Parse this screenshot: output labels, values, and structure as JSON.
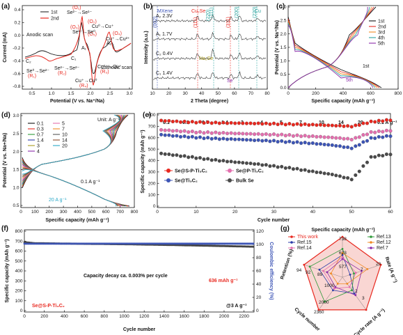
{
  "panels": {
    "a": {
      "label": "(a)",
      "xlabel": "Potential (V vs. Na⁺/Na)",
      "ylabel": "Current (mA)",
      "xticks": [
        "0.5",
        "1.0",
        "1.5",
        "2.0",
        "2.5",
        "3.0"
      ],
      "yticks": [
        "0.4",
        "0.2",
        "0.0",
        "-0.2",
        "-0.4",
        "-0.6",
        "-0.8"
      ],
      "legend": [
        "1st",
        "2nd"
      ],
      "notes": {
        "anodic": "Anodic scan",
        "cathodic": "Cathodic scan",
        "se2_se1": "Se²⁻→Se¹⁻",
        "o1": "(O₁)",
        "o2": "(O₂)",
        "o3": "(O₃)",
        "o4": "(O₄)",
        "o5": "(O₅)",
        "c1": "C₁",
        "c2": "C₂",
        "a1": "A₁",
        "a2": "A₂",
        "se1_se0": "Se¹⁻→Se⁰",
        "cu_cu": "Cu⁰→Cu⁺",
        "cu_cu2": "Cu⁺→Cu²⁺",
        "se0_se2": "Se⁰→Se²⁻",
        "r1": "(R₁)",
        "se2_se2": "Se²⁻→Se²⁻",
        "r2": "(R₂)",
        "cu2_cu": "Cu²⁺→Cu⁺",
        "r3": "(R₃)",
        "cu1_cu0": "Cu⁺→Cu⁰",
        "r4": "(R₄)"
      }
    },
    "b": {
      "label": "(b)",
      "xlabel": "2 Theta (degree)",
      "ylabel": "Intensity (a.u.)",
      "xticks": [
        "10",
        "20",
        "30",
        "40",
        "50",
        "60",
        "70",
        "80"
      ],
      "traces": [
        "A₂ 2.3V",
        "A₁ 1.7V",
        "C₂ 0.4V",
        "C₁ 1.4V"
      ],
      "labels": {
        "mxene": "MXene",
        "cu2se": "Cu₂Se",
        "cu": "Cu",
        "na2se": "Na₂Se",
        "se": "Se",
        "h002": "(002)",
        "h111": "(111)",
        "h220": "(220)",
        "h311": "(311)",
        "h111b": "(111)",
        "h200": "(200)",
        "h220b": "(220)"
      }
    },
    "c": {
      "label": "(c)",
      "xlabel": "Specific capacity (mAh g⁻¹)",
      "ylabel": "Potential (V vs. Na⁺/Na)",
      "xticks": [
        "0",
        "200",
        "400",
        "600",
        "800"
      ],
      "yticks": [
        "0.0",
        "0.5",
        "1.0",
        "1.5",
        "2.0",
        "2.5",
        "3.0"
      ],
      "legend": [
        "1st",
        "2nd",
        "3rd",
        "4th",
        "5th"
      ],
      "notes": {
        "first": "1st",
        "fifth": "5th"
      }
    },
    "d": {
      "label": "(d)",
      "xlabel": "Specific capacity (mAh g⁻¹)",
      "ylabel": "Potential (V vs. Na+/Na)",
      "xticks": [
        "0",
        "100",
        "200",
        "300",
        "400",
        "500",
        "600",
        "700",
        "800"
      ],
      "yticks": [
        "0.5",
        "1.0",
        "1.5",
        "2.0",
        "2.5",
        "3.0"
      ],
      "unit": "Unit: A g⁻¹",
      "legend": [
        "0.1",
        "0.3",
        "0.7",
        "1.4",
        "3",
        "4",
        "5",
        "7",
        "10",
        "14",
        "20"
      ],
      "notes": {
        "low": "0.1 A g⁻¹",
        "high": "20 A g⁻¹"
      }
    },
    "e": {
      "label": "(e)",
      "xlabel": "Cycle number",
      "ylabel": "Specific capacity (mAh g⁻¹)",
      "xticks": [
        "0",
        "10",
        "20",
        "30",
        "40",
        "50",
        "60"
      ],
      "yticks": [
        "0",
        "100",
        "200",
        "300",
        "400",
        "500",
        "600",
        "700",
        "800"
      ],
      "rates": [
        "0.1",
        "0.3",
        "0.7",
        "1.4",
        "3",
        "4",
        "5",
        "7",
        "10",
        "14",
        "20",
        "0.1 A g⁻¹"
      ],
      "legend": [
        "Se@S-P-Ti₃C₂",
        "Se@P-Ti₃C₂",
        "Se@Ti₃C₂",
        "Bulk Se"
      ]
    },
    "f": {
      "label": "(f)",
      "xlabel": "Cycle number",
      "ylabel": "Specific capacity (mAh g⁻¹)",
      "y2label": "Coulombic efficiency (%)",
      "xticks": [
        "0",
        "200",
        "400",
        "600",
        "800",
        "1000",
        "1200",
        "1400",
        "1600",
        "1800",
        "2000",
        "2200"
      ],
      "yticks": [
        "0",
        "100",
        "200",
        "300",
        "400",
        "500",
        "600",
        "700",
        "800"
      ],
      "y2ticks": [
        "0",
        "20",
        "40",
        "60",
        "80",
        "100",
        "120"
      ],
      "decay": "Capacity decay ca. 0.003% per cycle",
      "final": "636 mAh g⁻¹",
      "sample": "Se@S-P-Ti₃C₂",
      "rate": "@3 A g⁻¹"
    },
    "g": {
      "label": "(g)",
      "title": "Specific capacity (mAh g⁻¹)",
      "axes": [
        "Rate (A g⁻¹)",
        "Cycle rate (A g⁻¹)",
        "Cycle number",
        "Retention (%)"
      ],
      "legend": [
        "This work",
        "Ref.15",
        "Ref.14",
        "Ref.13",
        "Ref.12",
        "Ref.7"
      ],
      "ticks": {
        "cap1": "738",
        "cap2": "623",
        "cap3": "577",
        "rate1": "20",
        "rate2": "7",
        "cr1": "3",
        "cr2": "2",
        "cn1": "2360",
        "cn2": "2000",
        "cn3": "1000",
        "ret1": "94",
        "ret2": "92",
        "ret3": "89"
      }
    }
  },
  "colors": {
    "red": "#e8281f",
    "pink": "#e36fae",
    "blue": "#3d55b6",
    "gray": "#4a4a4a",
    "teal": "#2aa39e",
    "olive": "#a89a1e",
    "navy": "#2a3aa8",
    "green": "#2f9a3a",
    "orange": "#f08a24",
    "purple": "#8a2aa8"
  },
  "chart_data": [
    {
      "type": "line",
      "panel": "a",
      "xlim": [
        0.4,
        3.0
      ],
      "ylim": [
        -0.85,
        0.45
      ],
      "series": [
        {
          "name": "1st",
          "color": "#111111",
          "x": [
            0.4,
            0.6,
            0.9,
            1.2,
            1.4,
            1.55,
            1.6,
            1.65,
            1.8,
            1.95,
            2.05,
            2.1,
            2.3,
            2.6,
            3.0
          ],
          "y": [
            -0.2,
            -0.15,
            -0.12,
            -0.1,
            -0.08,
            -0.3,
            -0.62,
            -0.3,
            -0.1,
            -0.06,
            -0.2,
            -0.05,
            -0.02,
            -0.01,
            0.0
          ]
        },
        {
          "name": "2nd",
          "color": "#e8281f",
          "x": [
            0.4,
            0.6,
            0.9,
            1.2,
            1.35,
            1.55,
            1.6,
            1.65,
            1.8,
            1.95,
            2.05,
            2.1,
            2.3,
            2.6,
            3.0
          ],
          "y": [
            -0.25,
            -0.18,
            -0.15,
            -0.12,
            -0.2,
            -0.4,
            -0.75,
            -0.35,
            -0.12,
            -0.08,
            -0.25,
            -0.06,
            -0.03,
            -0.01,
            0.0
          ]
        }
      ]
    },
    {
      "type": "line",
      "panel": "e",
      "x": [
        1,
        5,
        10,
        15,
        20,
        25,
        30,
        35,
        40,
        45,
        50,
        55,
        60
      ],
      "series": [
        {
          "name": "Se@S-P-Ti₃C₂",
          "color": "#e8281f",
          "values": [
            740,
            730,
            725,
            720,
            718,
            715,
            712,
            708,
            704,
            698,
            690,
            730,
            745
          ]
        },
        {
          "name": "Se@P-Ti₃C₂",
          "color": "#e36fae",
          "values": [
            660,
            650,
            640,
            635,
            630,
            625,
            620,
            612,
            605,
            595,
            580,
            640,
            655
          ]
        },
        {
          "name": "Se@Ti₃C₂",
          "color": "#3d55b6",
          "values": [
            620,
            605,
            595,
            585,
            580,
            572,
            565,
            555,
            545,
            530,
            505,
            590,
            610
          ]
        },
        {
          "name": "Bulk Se",
          "color": "#4a4a4a",
          "values": [
            460,
            440,
            420,
            400,
            385,
            370,
            350,
            330,
            305,
            280,
            240,
            430,
            455
          ]
        }
      ],
      "xlim": [
        0,
        60
      ],
      "ylim": [
        0,
        800
      ]
    },
    {
      "type": "line",
      "panel": "f",
      "xlim": [
        0,
        2300
      ],
      "ylim": [
        0,
        800
      ],
      "series": [
        {
          "name": "Capacity",
          "x": [
            1,
            100,
            500,
            1000,
            1500,
            2000,
            2300
          ],
          "values": [
            680,
            670,
            665,
            660,
            652,
            642,
            636
          ]
        },
        {
          "name": "Coulombic efficiency",
          "x": [
            1,
            100,
            500,
            1000,
            1500,
            2000,
            2300
          ],
          "values": [
            99.5,
            99.8,
            99.8,
            99.8,
            99.8,
            99.8,
            99.8
          ]
        }
      ]
    }
  ]
}
